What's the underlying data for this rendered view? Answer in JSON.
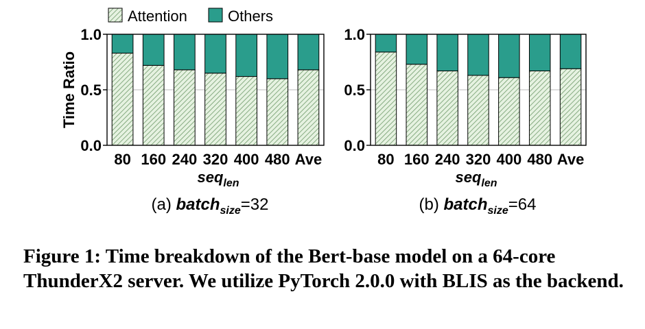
{
  "legend": [
    {
      "name": "Attention",
      "pattern": "hatched",
      "color": "#d6ecd2",
      "stroke": "#5b8a5b"
    },
    {
      "name": "Others",
      "pattern": "solid",
      "color": "#2a9d8c"
    }
  ],
  "chart_data": [
    {
      "type": "bar",
      "stacked": true,
      "categories": [
        "80",
        "160",
        "240",
        "320",
        "400",
        "480",
        "Ave"
      ],
      "series": [
        {
          "name": "Attention",
          "values": [
            0.83,
            0.72,
            0.68,
            0.65,
            0.62,
            0.6,
            0.68
          ]
        },
        {
          "name": "Others",
          "values": [
            0.17,
            0.28,
            0.32,
            0.35,
            0.38,
            0.4,
            0.32
          ]
        }
      ],
      "ylabel": "Time Ratio",
      "xlabel_main": "seq",
      "xlabel_sub": "len",
      "subtitle": {
        "prefix": "(a) ",
        "main": "batch",
        "sub": "size",
        "suffix": "=32"
      },
      "ylim": [
        0,
        1.0
      ],
      "yticks": [
        "0.0",
        "0.5",
        "1.0"
      ],
      "grid": true,
      "legend_position": "top"
    },
    {
      "type": "bar",
      "stacked": true,
      "categories": [
        "80",
        "160",
        "240",
        "320",
        "400",
        "480",
        "Ave"
      ],
      "series": [
        {
          "name": "Attention",
          "values": [
            0.84,
            0.73,
            0.67,
            0.63,
            0.61,
            0.67,
            0.69
          ]
        },
        {
          "name": "Others",
          "values": [
            0.16,
            0.27,
            0.33,
            0.37,
            0.39,
            0.33,
            0.31
          ]
        }
      ],
      "ylabel": "",
      "xlabel_main": "seq",
      "xlabel_sub": "len",
      "subtitle": {
        "prefix": "(b) ",
        "main": "batch",
        "sub": "size",
        "suffix": "=64"
      },
      "ylim": [
        0,
        1.0
      ],
      "yticks": [
        "0.0",
        "0.5",
        "1.0"
      ],
      "grid": true,
      "legend_position": "top"
    }
  ],
  "caption": "Figure 1: Time breakdown of the Bert-base model on a 64-core ThunderX2 server. We utilize PyTorch 2.0.0 with BLIS as the backend."
}
